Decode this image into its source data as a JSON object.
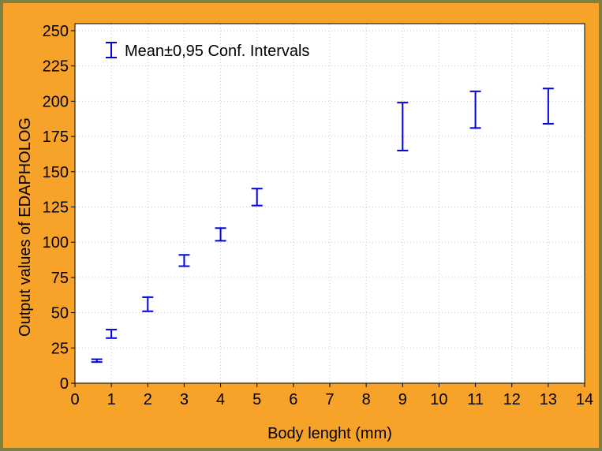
{
  "chart_data": {
    "type": "errorbar",
    "xlabel": "Body lenght (mm)",
    "ylabel": "Output values of EDAPHOLOG",
    "x_tick_labels": [
      "0",
      "1",
      "2",
      "3",
      "4",
      "5",
      "6",
      "7",
      "8",
      "9",
      "10",
      "11",
      "12",
      "13",
      "14"
    ],
    "y_ticks": [
      0,
      25,
      50,
      75,
      100,
      125,
      150,
      175,
      200,
      225,
      250
    ],
    "ylim": [
      0,
      255
    ],
    "grid": "dotted",
    "legend": {
      "label": "Mean±0,95 Conf. Intervals",
      "placement": "top-left"
    },
    "series_color": "#0000e0",
    "points": [
      {
        "x_index": 0.6,
        "low": 15,
        "high": 17
      },
      {
        "x_index": 1,
        "low": 32,
        "high": 38
      },
      {
        "x_index": 2,
        "low": 51,
        "high": 61
      },
      {
        "x_index": 3,
        "low": 83,
        "high": 91
      },
      {
        "x_index": 4,
        "low": 101,
        "high": 110
      },
      {
        "x_index": 5,
        "low": 126,
        "high": 138
      },
      {
        "x_index": 9,
        "low": 165,
        "high": 199
      },
      {
        "x_index": 11,
        "low": 181,
        "high": 207
      },
      {
        "x_index": 13,
        "low": 184,
        "high": 209
      }
    ]
  },
  "colors": {
    "frame_border": "#7f7f3f",
    "background": "#f7a229",
    "plot_area": "#ffffff"
  }
}
